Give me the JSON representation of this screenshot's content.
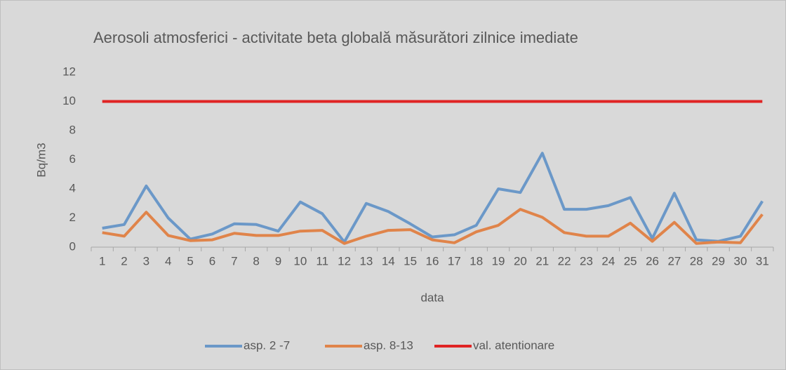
{
  "chart_data": {
    "type": "line",
    "title": "Aerosoli atmosferici - activitate beta globală măsurători zilnice imediate",
    "y_label": "Bq/m3",
    "x_label": "data",
    "categories": [
      "1",
      "2",
      "3",
      "4",
      "5",
      "6",
      "7",
      "8",
      "9",
      "10",
      "11",
      "12",
      "13",
      "14",
      "15",
      "16",
      "17",
      "18",
      "19",
      "20",
      "21",
      "22",
      "23",
      "24",
      "25",
      "26",
      "27",
      "28",
      "29",
      "30",
      "31"
    ],
    "series": [
      {
        "name": "asp. 2 -7",
        "color": "#6b98c8",
        "values": [
          1.3,
          1.55,
          4.2,
          2.0,
          0.55,
          0.9,
          1.6,
          1.55,
          1.1,
          3.1,
          2.3,
          0.35,
          3.0,
          2.45,
          1.6,
          0.7,
          0.85,
          1.5,
          4.0,
          3.75,
          6.45,
          2.6,
          2.6,
          2.85,
          3.4,
          0.6,
          3.7,
          0.5,
          0.4,
          0.75,
          3.15
        ]
      },
      {
        "name": "asp. 8-13",
        "color": "#e0844a",
        "values": [
          1.0,
          0.75,
          2.4,
          0.8,
          0.45,
          0.5,
          0.95,
          0.8,
          0.8,
          1.1,
          1.15,
          0.25,
          0.75,
          1.15,
          1.2,
          0.5,
          0.3,
          1.05,
          1.5,
          2.6,
          2.05,
          1.0,
          0.75,
          0.75,
          1.65,
          0.4,
          1.7,
          0.25,
          0.35,
          0.3,
          2.25
        ]
      },
      {
        "name": "val. atentionare",
        "color": "#e02424",
        "values": [
          10,
          10,
          10,
          10,
          10,
          10,
          10,
          10,
          10,
          10,
          10,
          10,
          10,
          10,
          10,
          10,
          10,
          10,
          10,
          10,
          10,
          10,
          10,
          10,
          10,
          10,
          10,
          10,
          10,
          10,
          10
        ]
      }
    ],
    "ylim": [
      0,
      12
    ],
    "yticks": [
      0,
      2,
      4,
      6,
      8,
      10,
      12
    ],
    "grid": false,
    "legend": "bottom"
  }
}
